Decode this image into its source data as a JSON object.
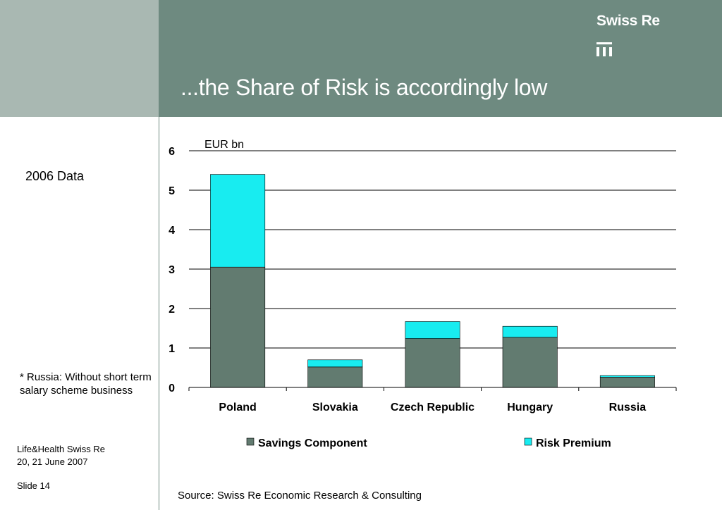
{
  "header": {
    "brand": "Swiss Re",
    "title": "...the Share of Risk is accordingly low"
  },
  "sidebar": {
    "year_label": "2006 Data",
    "footnote": "* Russia: Without short term salary scheme business",
    "footer_org": "Life&Health Swiss Re",
    "footer_date": "20, 21 June 2007",
    "slide_number": "Slide 14"
  },
  "source": "Source: Swiss Re Economic Research & Consulting",
  "colors": {
    "header_dark": "#6e8a80",
    "header_light": "#a9b8b2",
    "savings": "#627b70",
    "risk": "#18ecf0"
  },
  "chart_data": {
    "type": "bar",
    "stacked": true,
    "ylabel": "EUR bn",
    "ylim": [
      0,
      6
    ],
    "yticks": [
      0,
      1,
      2,
      3,
      4,
      5,
      6
    ],
    "grid": true,
    "legend_position": "bottom",
    "categories": [
      "Poland",
      "Slovakia",
      "Czech Republic",
      "Hungary",
      "Russia"
    ],
    "series": [
      {
        "name": "Savings Component",
        "color": "#627b70",
        "values": [
          3.05,
          0.52,
          1.24,
          1.27,
          0.26
        ]
      },
      {
        "name": "Risk Premium",
        "color": "#18ecf0",
        "values": [
          2.35,
          0.18,
          0.43,
          0.28,
          0.04
        ]
      }
    ]
  }
}
